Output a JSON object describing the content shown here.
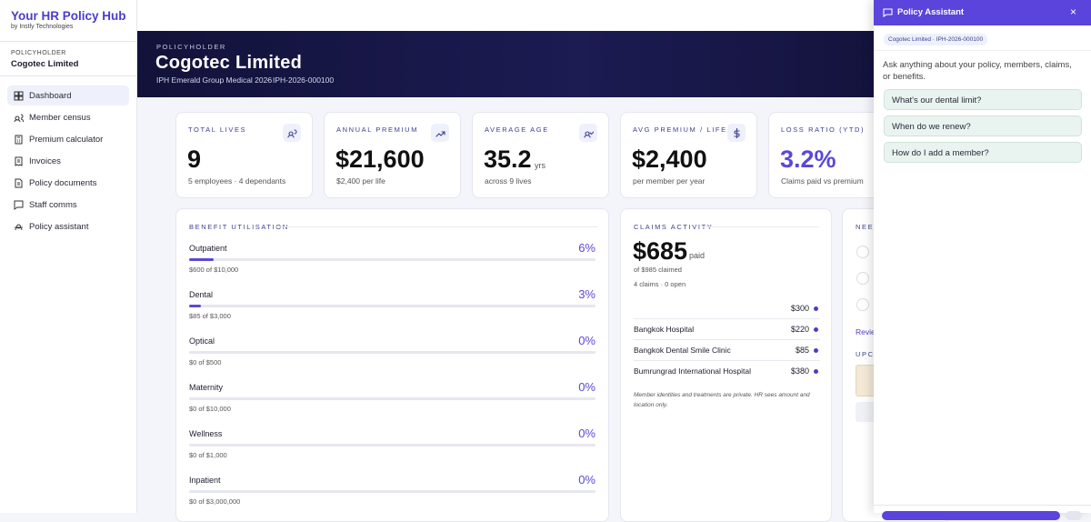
{
  "sidebar": {
    "brand": "Your HR Policy Hub",
    "byline": "by Instly Technologies",
    "policyholder_label": "POLICYHOLDER",
    "policyholder": "Cogotec Limited",
    "nav": [
      "Dashboard",
      "Member census",
      "Premium calculator",
      "Invoices",
      "Policy documents",
      "Staff comms",
      "Policy assistant"
    ]
  },
  "header": {
    "eyebrow": "POLICYHOLDER",
    "title": "Cogotec Limited",
    "plan": "IPH Emerald Group Medical 2026",
    "separator": "·",
    "policy_number": "IPH-2026-000100"
  },
  "kpis": [
    {
      "label": "TOTAL LIVES",
      "value": "9",
      "sub": "5 employees · 4 dependants"
    },
    {
      "label": "ANNUAL PREMIUM",
      "value": "$21,600",
      "sub": "$2,400 per life"
    },
    {
      "label": "AVERAGE AGE",
      "value": "35.2",
      "unit": "yrs",
      "sub": "across 9 lives"
    },
    {
      "label": "AVG PREMIUM / LIFE",
      "value": "$2,400",
      "sub": "per member per year"
    },
    {
      "label": "LOSS RATIO (YTD)",
      "value": "3.2%",
      "sub": "Claims paid vs premium"
    }
  ],
  "benefits": {
    "title": "BENEFIT UTILISATION",
    "items": [
      {
        "name": "Outpatient",
        "percent": 6,
        "percent_label": "6%",
        "detail": "$600 of $10,000"
      },
      {
        "name": "Dental",
        "percent": 3,
        "percent_label": "3%",
        "detail": "$85 of $3,000"
      },
      {
        "name": "Optical",
        "percent": 0,
        "percent_label": "0%",
        "detail": "$0 of $500"
      },
      {
        "name": "Maternity",
        "percent": 0,
        "percent_label": "0%",
        "detail": "$0 of $10,000"
      },
      {
        "name": "Wellness",
        "percent": 0,
        "percent_label": "0%",
        "detail": "$0 of $1,000"
      },
      {
        "name": "Inpatient",
        "percent": 0,
        "percent_label": "0%",
        "detail": "$0 of $3,000,000"
      }
    ]
  },
  "claims": {
    "title": "CLAIMS ACTIVITY",
    "paid": "$685",
    "paid_label": "paid",
    "claimed": "of $985 claimed",
    "counts": "4 claims · 0 open",
    "rows": [
      {
        "amount": "$300"
      },
      {
        "provider": "Bangkok Hospital",
        "amount": "$220"
      },
      {
        "provider": "Bangkok Dental Smile Clinic",
        "amount": "$85"
      },
      {
        "provider": "Bumrungrad International Hospital",
        "amount": "$380"
      }
    ],
    "note": "Member identities and treatments are private. HR sees amount and location only."
  },
  "needs": {
    "title": "NEED",
    "link": "Revie",
    "upcoming": "UPCO"
  },
  "assistant": {
    "title": "Policy Assistant",
    "close": "×",
    "chip": "Cogotec Limited · IPH-2026-000100",
    "intro": "Ask anything about your policy, members, claims, or benefits.",
    "suggestions": [
      "What's our dental limit?",
      "When do we renew?",
      "How do I add a member?"
    ]
  }
}
